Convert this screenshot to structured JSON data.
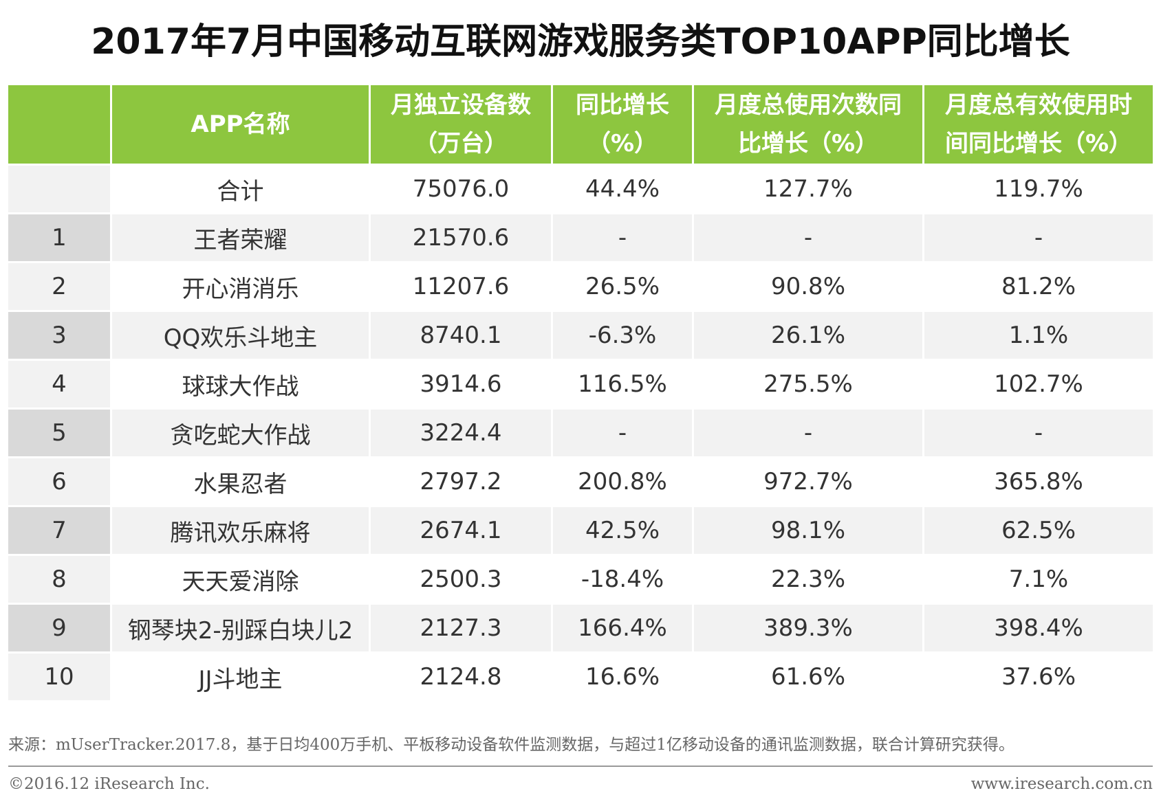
{
  "title": "2017年7月中国移动互联网游戏服务类TOP10APP同比增长",
  "table": {
    "headers": {
      "rank": "",
      "app_name": "APP名称",
      "devices_line1": "月独立设备数",
      "devices_line2": "（万台）",
      "yoy_line1": "同比增长",
      "yoy_line2": "（%）",
      "usage_count_line1": "月度总使用次数同",
      "usage_count_line2": "比增长（%）",
      "usage_time_line1": "月度总有效使用时",
      "usage_time_line2": "间同比增长（%）"
    },
    "total": {
      "rank": "",
      "name": "合计",
      "devices": "75076.0",
      "yoy": "44.4%",
      "usage_count": "127.7%",
      "usage_time": "119.7%"
    },
    "rows": [
      {
        "rank": "1",
        "name": "王者荣耀",
        "devices": "21570.6",
        "yoy": "-",
        "usage_count": "-",
        "usage_time": "-"
      },
      {
        "rank": "2",
        "name": "开心消消乐",
        "devices": "11207.6",
        "yoy": "26.5%",
        "usage_count": "90.8%",
        "usage_time": "81.2%"
      },
      {
        "rank": "3",
        "name": "QQ欢乐斗地主",
        "devices": "8740.1",
        "yoy": "-6.3%",
        "usage_count": "26.1%",
        "usage_time": "1.1%"
      },
      {
        "rank": "4",
        "name": "球球大作战",
        "devices": "3914.6",
        "yoy": "116.5%",
        "usage_count": "275.5%",
        "usage_time": "102.7%"
      },
      {
        "rank": "5",
        "name": "贪吃蛇大作战",
        "devices": "3224.4",
        "yoy": "-",
        "usage_count": "-",
        "usage_time": "-"
      },
      {
        "rank": "6",
        "name": "水果忍者",
        "devices": "2797.2",
        "yoy": "200.8%",
        "usage_count": "972.7%",
        "usage_time": "365.8%"
      },
      {
        "rank": "7",
        "name": "腾讯欢乐麻将",
        "devices": "2674.1",
        "yoy": "42.5%",
        "usage_count": "98.1%",
        "usage_time": "62.5%"
      },
      {
        "rank": "8",
        "name": "天天爱消除",
        "devices": "2500.3",
        "yoy": "-18.4%",
        "usage_count": "22.3%",
        "usage_time": "7.1%"
      },
      {
        "rank": "9",
        "name": "钢琴块2-别踩白块儿2",
        "devices": "2127.3",
        "yoy": "166.4%",
        "usage_count": "389.3%",
        "usage_time": "398.4%"
      },
      {
        "rank": "10",
        "name": "JJ斗地主",
        "devices": "2124.8",
        "yoy": "16.6%",
        "usage_count": "61.6%",
        "usage_time": "37.6%"
      }
    ]
  },
  "source": "来源：mUserTracker.2017.8，基于日均400万手机、平板移动设备软件监测数据，与超过1亿移动设备的通讯监测数据，联合计算研究获得。",
  "copyright": "©2016.12 iResearch Inc.",
  "website": "www.iresearch.com.cn",
  "colors": {
    "header_green": "#8dc63f",
    "zebra_gray": "#f2f2f2",
    "rank_gray": "#d9d9d9"
  }
}
